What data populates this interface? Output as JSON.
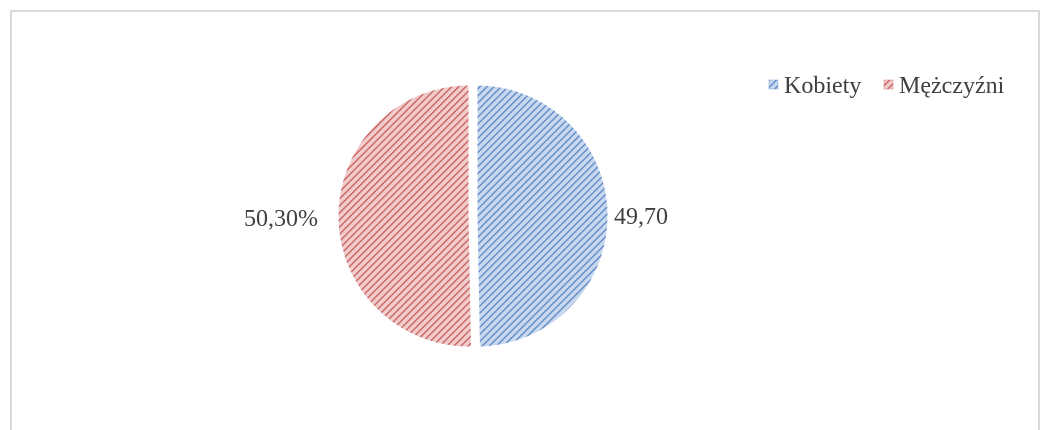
{
  "chart_data": {
    "type": "pie",
    "categories": [
      "Kobiety",
      "Mężczyźni"
    ],
    "values": [
      49.7,
      50.3
    ],
    "data_labels": [
      "49,70",
      "50,30%"
    ],
    "colors": [
      "#7ba0d4",
      "#d97b7b"
    ],
    "pattern": "diagonal-hatch",
    "legend_position": "top-right",
    "start_angle_deg": 0,
    "direction": "clockwise",
    "exploded": true
  }
}
